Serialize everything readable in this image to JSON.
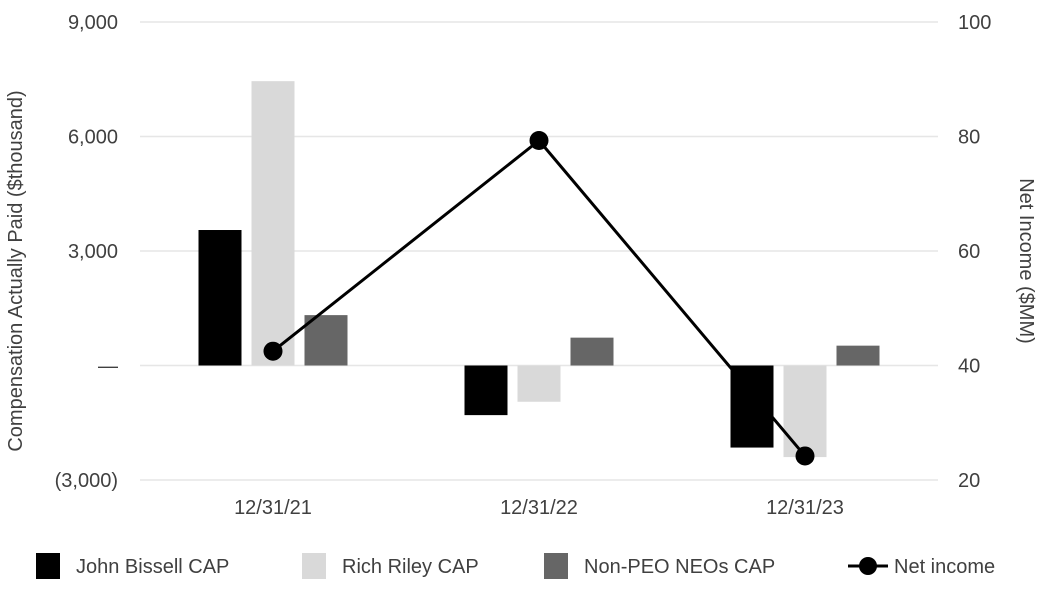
{
  "chart_data": {
    "type": "bar",
    "categories": [
      "12/31/21",
      "12/31/22",
      "12/31/23"
    ],
    "series": [
      {
        "name": "John Bissell CAP",
        "axis": "left",
        "values": [
          3550,
          -1300,
          -2150
        ],
        "color": "#000000"
      },
      {
        "name": "Rich Riley CAP",
        "axis": "left",
        "values": [
          7450,
          -950,
          -2400
        ],
        "color": "#d9d9d9"
      },
      {
        "name": "Non-PEO NEOs CAP",
        "axis": "left",
        "values": [
          1320,
          730,
          520
        ],
        "color": "#666666"
      },
      {
        "name": "Net income",
        "axis": "right",
        "type": "line",
        "values": [
          42.5,
          79.3,
          24.2
        ],
        "color": "#000000"
      }
    ],
    "ylabel": "Compensation Actually Paid ($thousand)",
    "y2label": "Net Income ($MM)",
    "ylim": [
      -3000,
      9000
    ],
    "y2lim": [
      20,
      100
    ],
    "yticks": [
      {
        "value": -3000,
        "label": "(3,000)"
      },
      {
        "value": 0,
        "label": "—"
      },
      {
        "value": 3000,
        "label": "3,000"
      },
      {
        "value": 6000,
        "label": "6,000"
      },
      {
        "value": 9000,
        "label": "9,000"
      }
    ],
    "y2ticks": [
      {
        "value": 20,
        "label": "20"
      },
      {
        "value": 40,
        "label": "40"
      },
      {
        "value": 60,
        "label": "60"
      },
      {
        "value": 80,
        "label": "80"
      },
      {
        "value": 100,
        "label": "100"
      }
    ],
    "grid": true,
    "legend": "bottom"
  }
}
